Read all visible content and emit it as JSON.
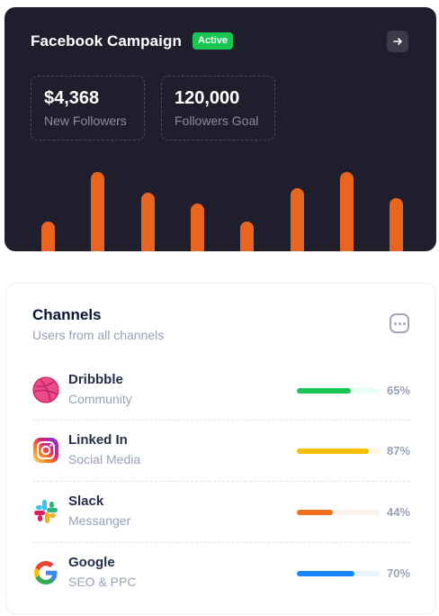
{
  "campaign": {
    "title": "Facebook Campaign",
    "badge": "Active",
    "stats": [
      {
        "value": "$4,368",
        "label": "New Followers"
      },
      {
        "value": "120,000",
        "label": "Followers Goal"
      }
    ],
    "bar_color": "#e8641f",
    "bar_levels": [
      0.38,
      1.0,
      0.74,
      0.6,
      0.38,
      0.8,
      1.0,
      0.67
    ]
  },
  "channels": {
    "title": "Channels",
    "subtitle": "Users from all channels",
    "items": [
      {
        "name": "Dribbble",
        "category": "Community",
        "percent_label": "65%",
        "percent": 65,
        "color": "#17c653",
        "track": "#e8fff3",
        "icon": "dribbble-icon"
      },
      {
        "name": "Linked In",
        "category": "Social Media",
        "percent_label": "87%",
        "percent": 87,
        "color": "#f6c000",
        "track": "#fff8dd",
        "icon": "instagram-icon"
      },
      {
        "name": "Slack",
        "category": "Messanger",
        "percent_label": "44%",
        "percent": 44,
        "color": "#f1701a",
        "track": "#fdf3ec",
        "icon": "slack-icon"
      },
      {
        "name": "Google",
        "category": "SEO & PPC",
        "percent_label": "70%",
        "percent": 70,
        "color": "#1b84ff",
        "track": "#e9f3ff",
        "icon": "google-icon"
      }
    ]
  }
}
